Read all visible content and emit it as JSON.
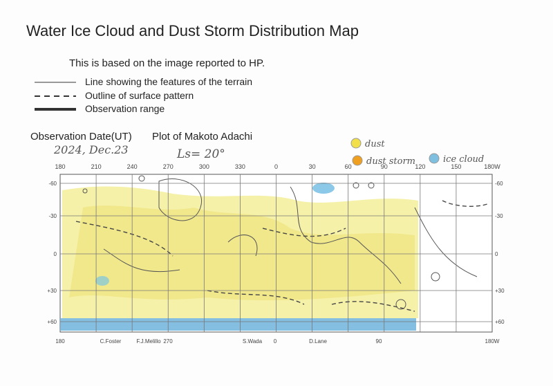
{
  "header": {
    "title": "Water Ice Cloud and Dust Storm Distribution Map",
    "subtitle": "This is based on the image reported to HP."
  },
  "legend": {
    "lines": [
      "Line showing the features of the terrain",
      "Outline of surface pattern",
      "Observation range"
    ],
    "colors": [
      "dust",
      "dust storm",
      "ice cloud"
    ]
  },
  "observation": {
    "date_label": "Observation Date(UT)",
    "date": "2024, Dec.23",
    "plot_label": "Plot of Makoto Adachi",
    "ls": "Ls= 20°"
  },
  "map": {
    "top_labels": [
      "180",
      "210",
      "240",
      "270",
      "300",
      "330",
      "0",
      "30",
      "60",
      "90",
      "120",
      "150",
      "180W"
    ],
    "lat_labels": [
      "-60",
      "-30",
      "0",
      "+30",
      "+60"
    ],
    "bottom_labels": [
      "180",
      "C.Foster",
      "F.J.Melillo",
      "270",
      "S.Wada",
      "0",
      "D.Lane",
      "90",
      "180W"
    ]
  }
}
